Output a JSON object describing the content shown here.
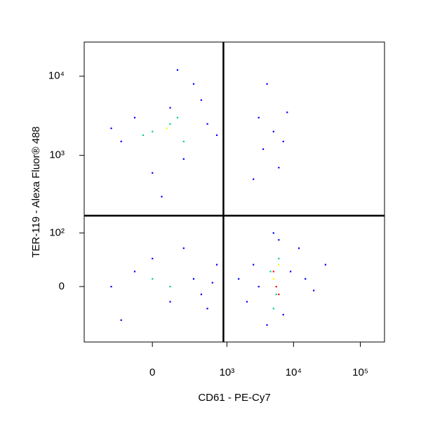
{
  "chart_data": {
    "type": "scatter",
    "x_label": "CD61 - PE-Cy7",
    "y_label": "TER-119 - Alexa Fluor® 488",
    "xscale": "asinh",
    "yscale": "asinh",
    "xlim": [
      -800,
      230000
    ],
    "ylim": [
      -106,
      27000
    ],
    "xticks": [
      0,
      {
        "value": 1000,
        "label": "10³"
      },
      {
        "value": 10000,
        "label": "10⁴"
      },
      {
        "value": 100000,
        "label": "10⁵"
      }
    ],
    "yticks": [
      0,
      {
        "value": 100,
        "label": "10²"
      },
      {
        "value": 1000,
        "label": "10³"
      },
      {
        "value": 10000,
        "label": "10⁴"
      }
    ],
    "gates": {
      "x": 885,
      "y": 170,
      "color": "#000000"
    },
    "series": [
      {
        "color": "#0000ff",
        "x": [
          -200,
          100,
          300,
          -100,
          500,
          200,
          0,
          50,
          -300,
          700,
          400,
          150,
          3000,
          5000,
          7000,
          2500,
          6000,
          4000,
          8000,
          3500,
          -300,
          -100,
          100,
          300,
          500,
          700,
          200,
          -200,
          600,
          400,
          0,
          1500,
          2000,
          2500,
          3000,
          9000,
          15000,
          20000,
          4000,
          6000,
          7000,
          5000,
          30000,
          12000
        ],
        "y": [
          1500,
          4000,
          8000,
          3000,
          2500,
          900,
          600,
          300,
          2200,
          1800,
          5000,
          12000,
          3000,
          2000,
          1500,
          500,
          700,
          8000,
          3500,
          1200,
          0,
          20,
          -20,
          10,
          -30,
          30,
          60,
          -50,
          5,
          -10,
          40,
          10,
          -20,
          30,
          0,
          20,
          10,
          -5,
          -60,
          80,
          -40,
          100,
          30,
          60
        ]
      },
      {
        "color": "#00d080",
        "x": [
          0,
          100,
          -50,
          200,
          150,
          4500,
          5500,
          6000,
          5000,
          100,
          0
        ],
        "y": [
          2000,
          2500,
          1800,
          1500,
          3000,
          20,
          -10,
          40,
          -30,
          0,
          10
        ]
      },
      {
        "color": "#ffff00",
        "x": [
          5000,
          6000,
          80
        ],
        "y": [
          10,
          30,
          2200
        ]
      },
      {
        "color": "#ff0000",
        "x": [
          5500,
          6000,
          5000
        ],
        "y": [
          0,
          -10,
          20
        ]
      }
    ]
  }
}
